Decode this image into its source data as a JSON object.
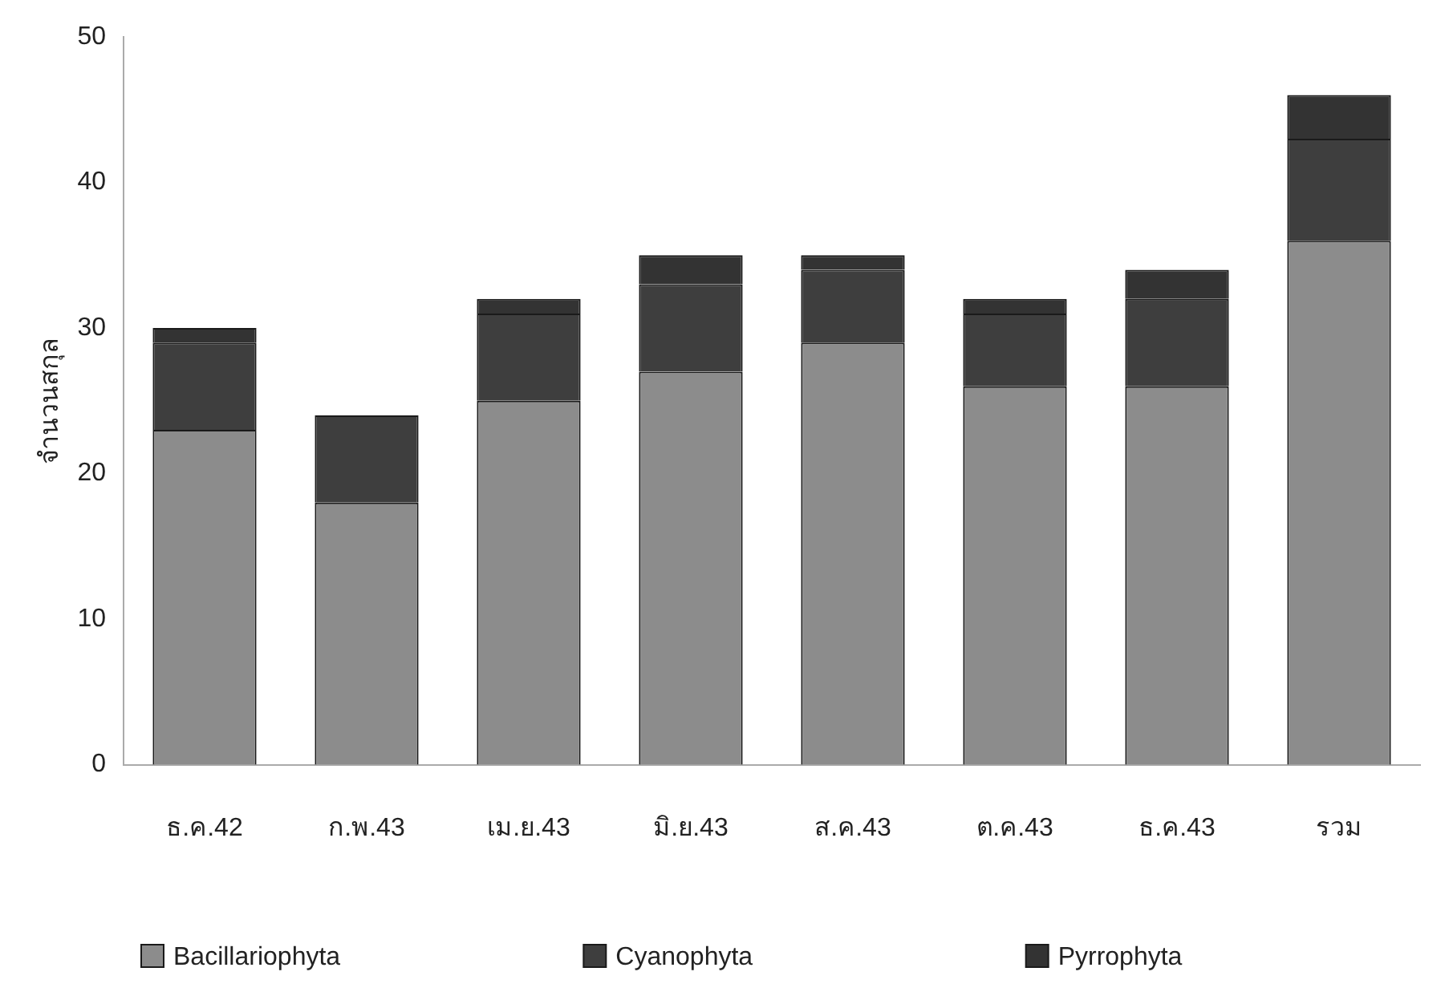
{
  "chart_data": {
    "type": "bar",
    "stacked": true,
    "ylabel": "จำนวนสกุล",
    "categories": [
      "ธ.ค.42",
      "ก.พ.43",
      "เม.ย.43",
      "มิ.ย.43",
      "ส.ค.43",
      "ต.ค.43",
      "ธ.ค.43",
      "รวม"
    ],
    "series": [
      {
        "name": "Bacillariophyta",
        "color": "#8c8c8c",
        "values": [
          23,
          18,
          25,
          27,
          29,
          26,
          26,
          36
        ]
      },
      {
        "name": "Cyanophyta",
        "color": "#3e3e3e",
        "values": [
          6,
          6,
          6,
          6,
          5,
          5,
          6,
          7
        ]
      },
      {
        "name": "Pyrrophyta",
        "color": "#333333",
        "values": [
          1,
          0,
          1,
          2,
          1,
          1,
          2,
          3
        ]
      }
    ],
    "ylim": [
      0,
      50
    ],
    "yticks": [
      0,
      10,
      20,
      30,
      40,
      50
    ],
    "grid": false,
    "legend": "bottom"
  }
}
